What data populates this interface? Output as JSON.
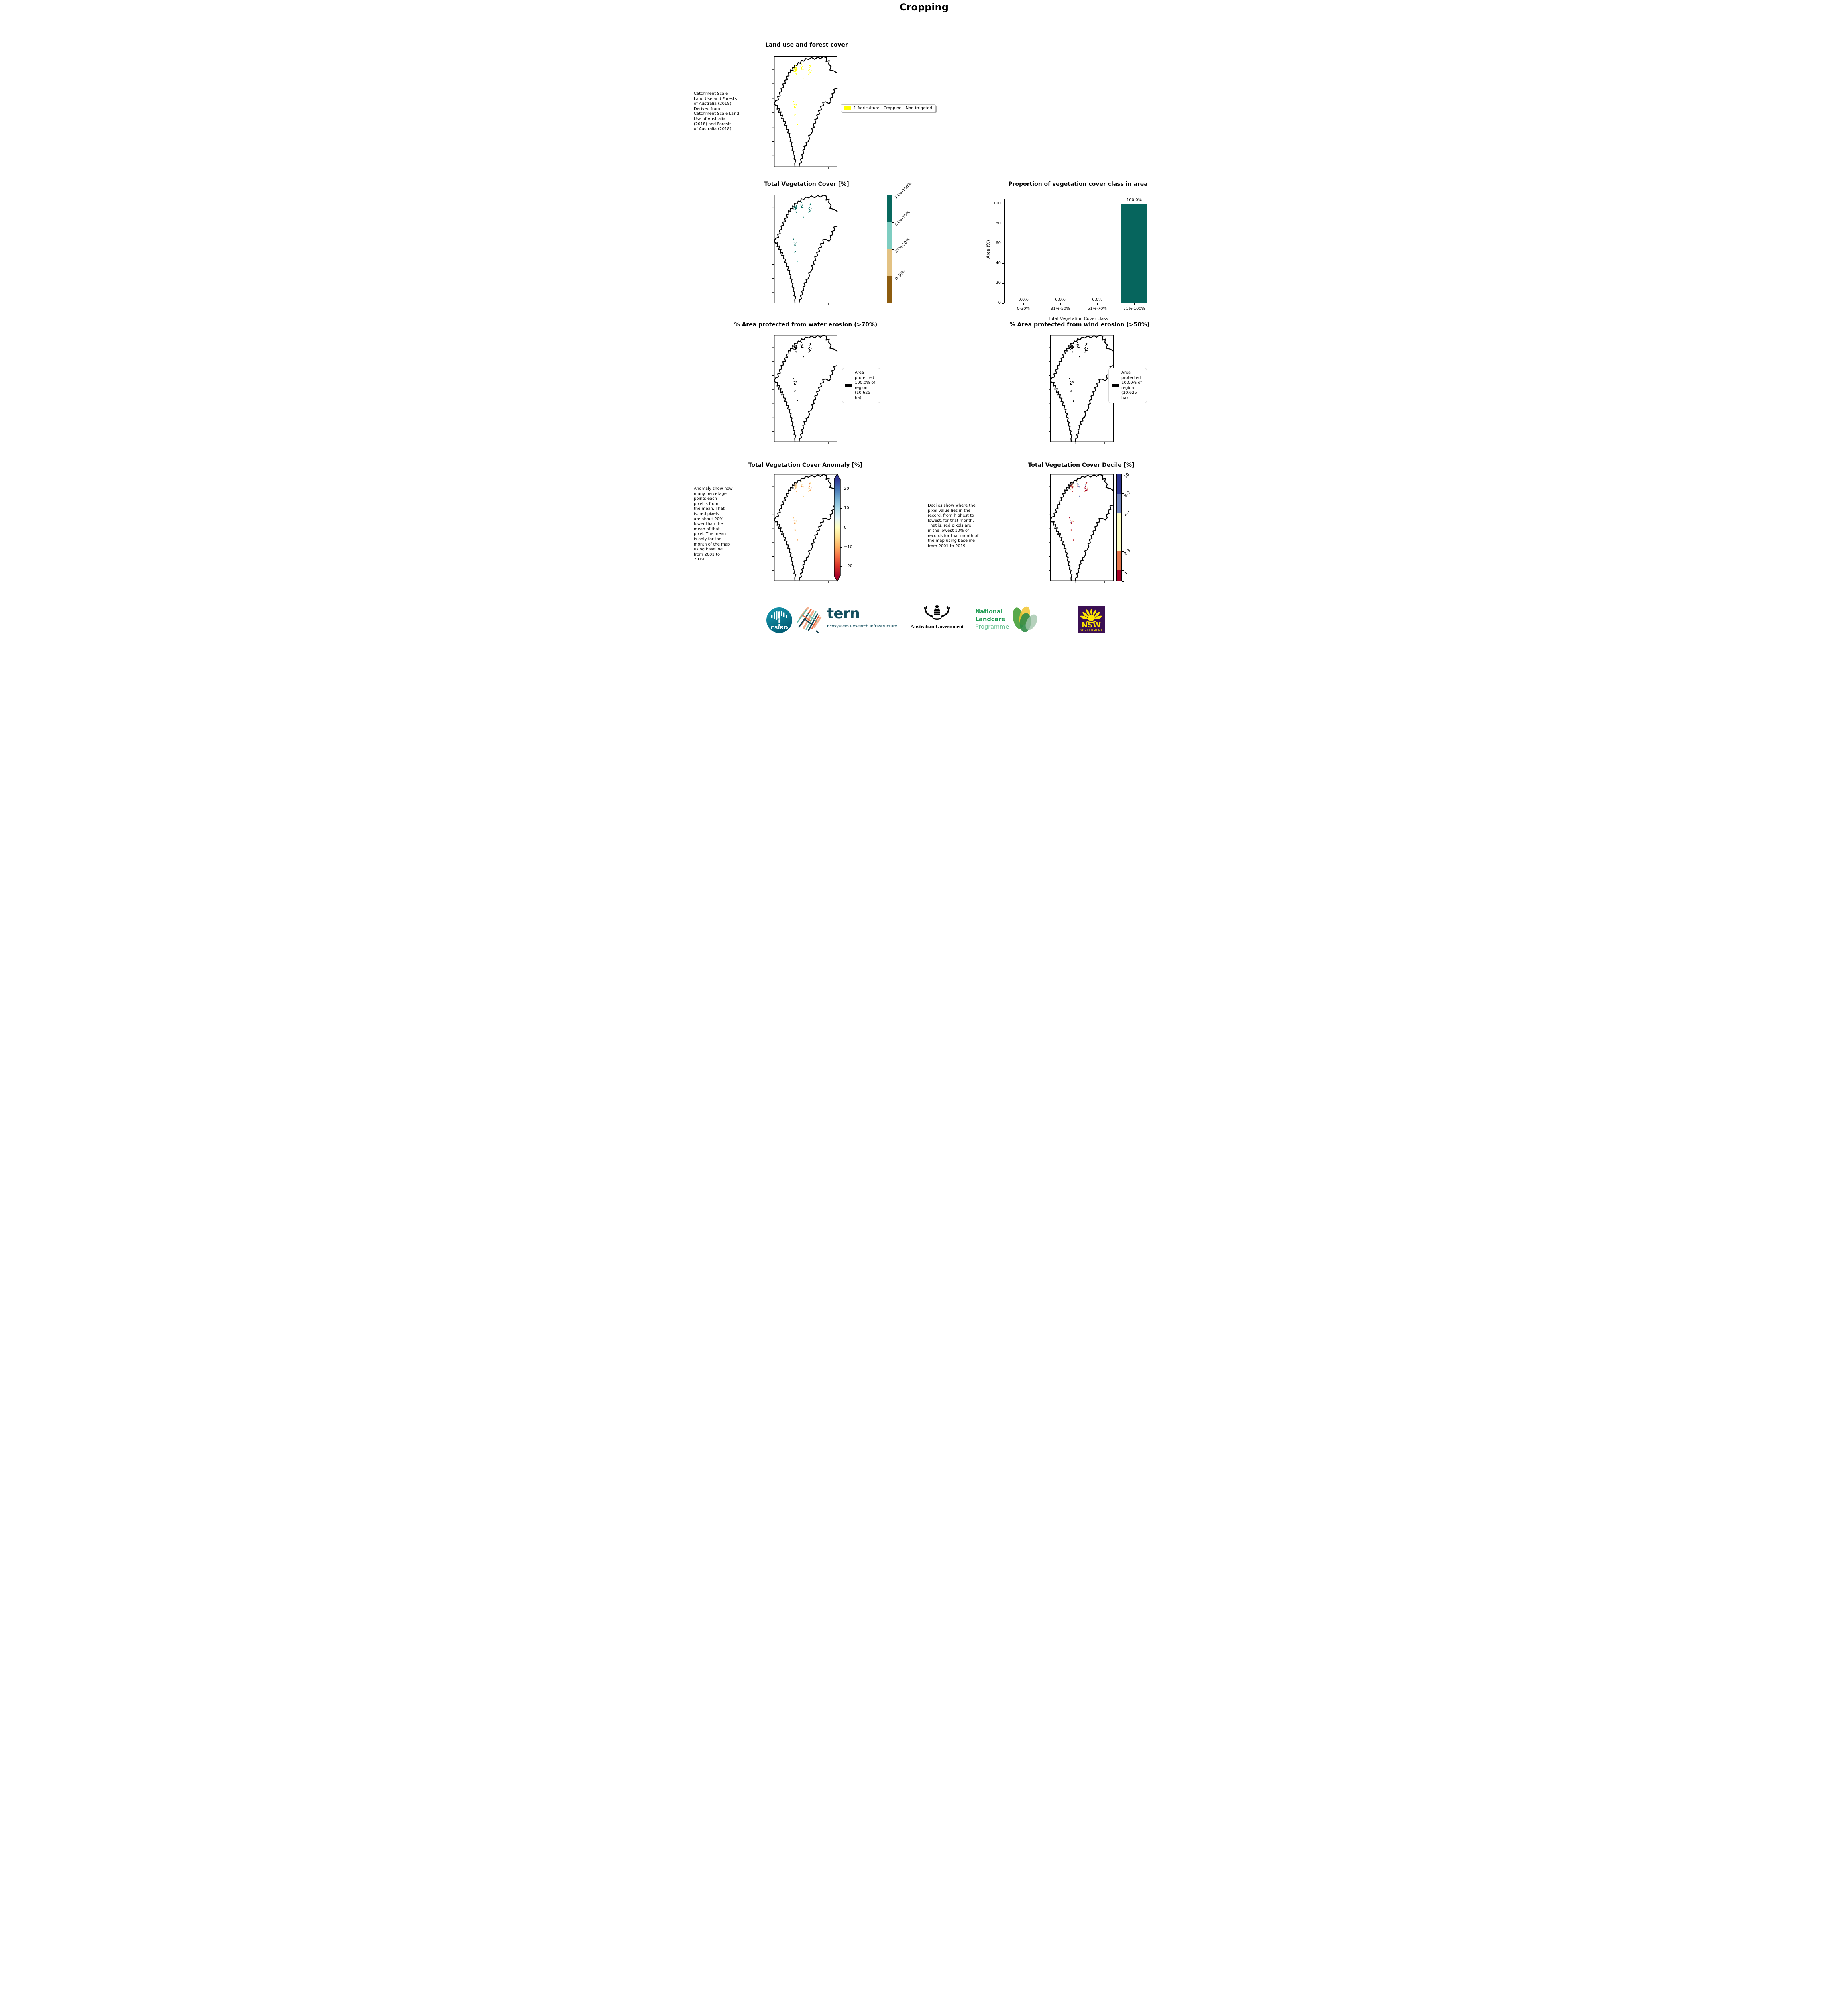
{
  "page": {
    "title": "Cropping"
  },
  "chart_data": {
    "type": "bar",
    "title": "Proportion of vegetation cover class in area",
    "categories": [
      "0-30%",
      "31%-50%",
      "51%-70%",
      "71%-100%"
    ],
    "values": [
      0.0,
      0.0,
      0.0,
      100.0
    ],
    "value_labels": [
      "0.0%",
      "0.0%",
      "0.0%",
      "100.0%"
    ],
    "xlabel": "Total Vegetation Cover class",
    "ylabel": "Area (%)",
    "ylim": [
      0,
      105
    ],
    "yticks": [
      0,
      20,
      40,
      60,
      80,
      100
    ],
    "bar_color": "#06655d",
    "grid": false,
    "legend_position": "none"
  },
  "panels": {
    "land_use": {
      "title": "Land use and forest cover",
      "caption": " Catchment Scale\nLand Use and Forests\nof Australia (2018)\nDerived from\nCatchment Scale Land\nUse of Australia\n(2018) and Forests\nof Australia (2018)",
      "legend": {
        "color": "#ffff00",
        "label": "1 Agriculture - Cropping - Non-irrigated"
      }
    },
    "tvc": {
      "title": "Total Vegetation Cover [%]",
      "colorbar": {
        "labels": [
          "71%-100%",
          "51%-70%",
          "31%-50%",
          "0-30%"
        ],
        "colors": [
          "#07685e",
          "#7ecdc1",
          "#e3c283",
          "#8d5c0f"
        ]
      }
    },
    "water": {
      "title": "% Area protected from water erosion (>70%)",
      "legend": {
        "color": "#000000",
        "label": "Area\nprotected\n100.0% of\nregion\n(10,625\nha)"
      }
    },
    "wind": {
      "title": "% Area protected from wind erosion (>50%)",
      "legend": {
        "color": "#000000",
        "label": "Area\nprotected\n100.0% of\nregion\n(10,625\nha)"
      }
    },
    "anomaly": {
      "title": "Total Vegetation Cover Anomaly [%]",
      "caption": "Anomaly show how\nmany percetage\npoints each\npixel is from\nthe mean. That\nis, red pixels\nare about 20%\nlower than the\nmean of that\npixel. The mean\nis only for the\nmonth of the map\nusing baseline\nfrom 2001 to\n2019.",
      "colorbar": {
        "ticks": [
          "20",
          "10",
          "0",
          "−10",
          "−20"
        ],
        "gradient": [
          "#313695",
          "#4575b4",
          "#74add1",
          "#abd9e9",
          "#e0f3f8",
          "#ffffbf",
          "#fee090",
          "#fdae61",
          "#f46d43",
          "#d73027",
          "#a50026"
        ]
      }
    },
    "decile": {
      "title": "Total Vegetation Cover Decile [%]",
      "caption": "Deciles show where the\npixel value lies in the\nrecord, from highest to\nlowest, for that month.\nThat is, red pixels are\nin the lowest 10% of\nrecords for that month of\nthe map using baseline\nfrom 2001 to 2019.",
      "colorbar": {
        "labels": [
          "10",
          "8-9",
          "4-7",
          "2-3",
          "1"
        ],
        "colors": [
          "#2e3593",
          "#7084bd",
          "#fbfbc3",
          "#e5744a",
          "#a50126"
        ],
        "heights_pct": [
          18,
          18,
          36,
          18,
          10
        ]
      }
    }
  },
  "footer": {
    "csiro_label": "CSIRO",
    "tern_label": "tern",
    "tern_sub": "Ecosystem Research Infrastructure",
    "gov_label": "Australian Government",
    "nlp_line1": "National",
    "nlp_line2": "Landcare",
    "nlp_line3": "Programme",
    "nsw_label": "NSW",
    "nsw_sub": "GOVERNMENT",
    "colors": {
      "csiro_teal": "#00758a",
      "tern_teal": "#134e5e",
      "landcare_green": "#17994d",
      "landcare_light": "#5fbe8b",
      "nsw_purple": "#3b1053",
      "nsw_yellow": "#ffe600"
    }
  }
}
